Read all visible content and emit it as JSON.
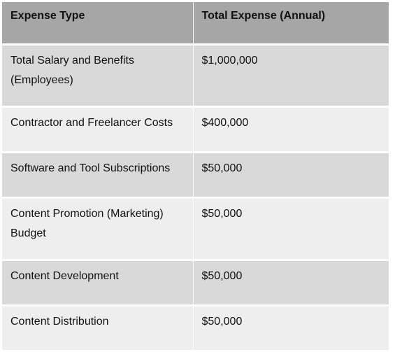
{
  "table": {
    "headers": [
      "Expense Type",
      "Total Expense (Annual)"
    ],
    "rows": [
      {
        "type": "Total Salary and Benefits (Employees)",
        "total": "$1,000,000"
      },
      {
        "type": "Contractor and Freelancer Costs",
        "total": "$400,000"
      },
      {
        "type": "Software and Tool Subscriptions",
        "total": "$50,000"
      },
      {
        "type": "Content Promotion (Marketing) Budget",
        "total": "$50,000"
      },
      {
        "type": "Content Development",
        "total": "$50,000"
      },
      {
        "type": "Content Distribution",
        "total": "$50,000"
      }
    ]
  },
  "colors": {
    "header_bg": "#a6a6a6",
    "row_dark": "#d9d9d9",
    "row_light": "#eeeeee"
  }
}
